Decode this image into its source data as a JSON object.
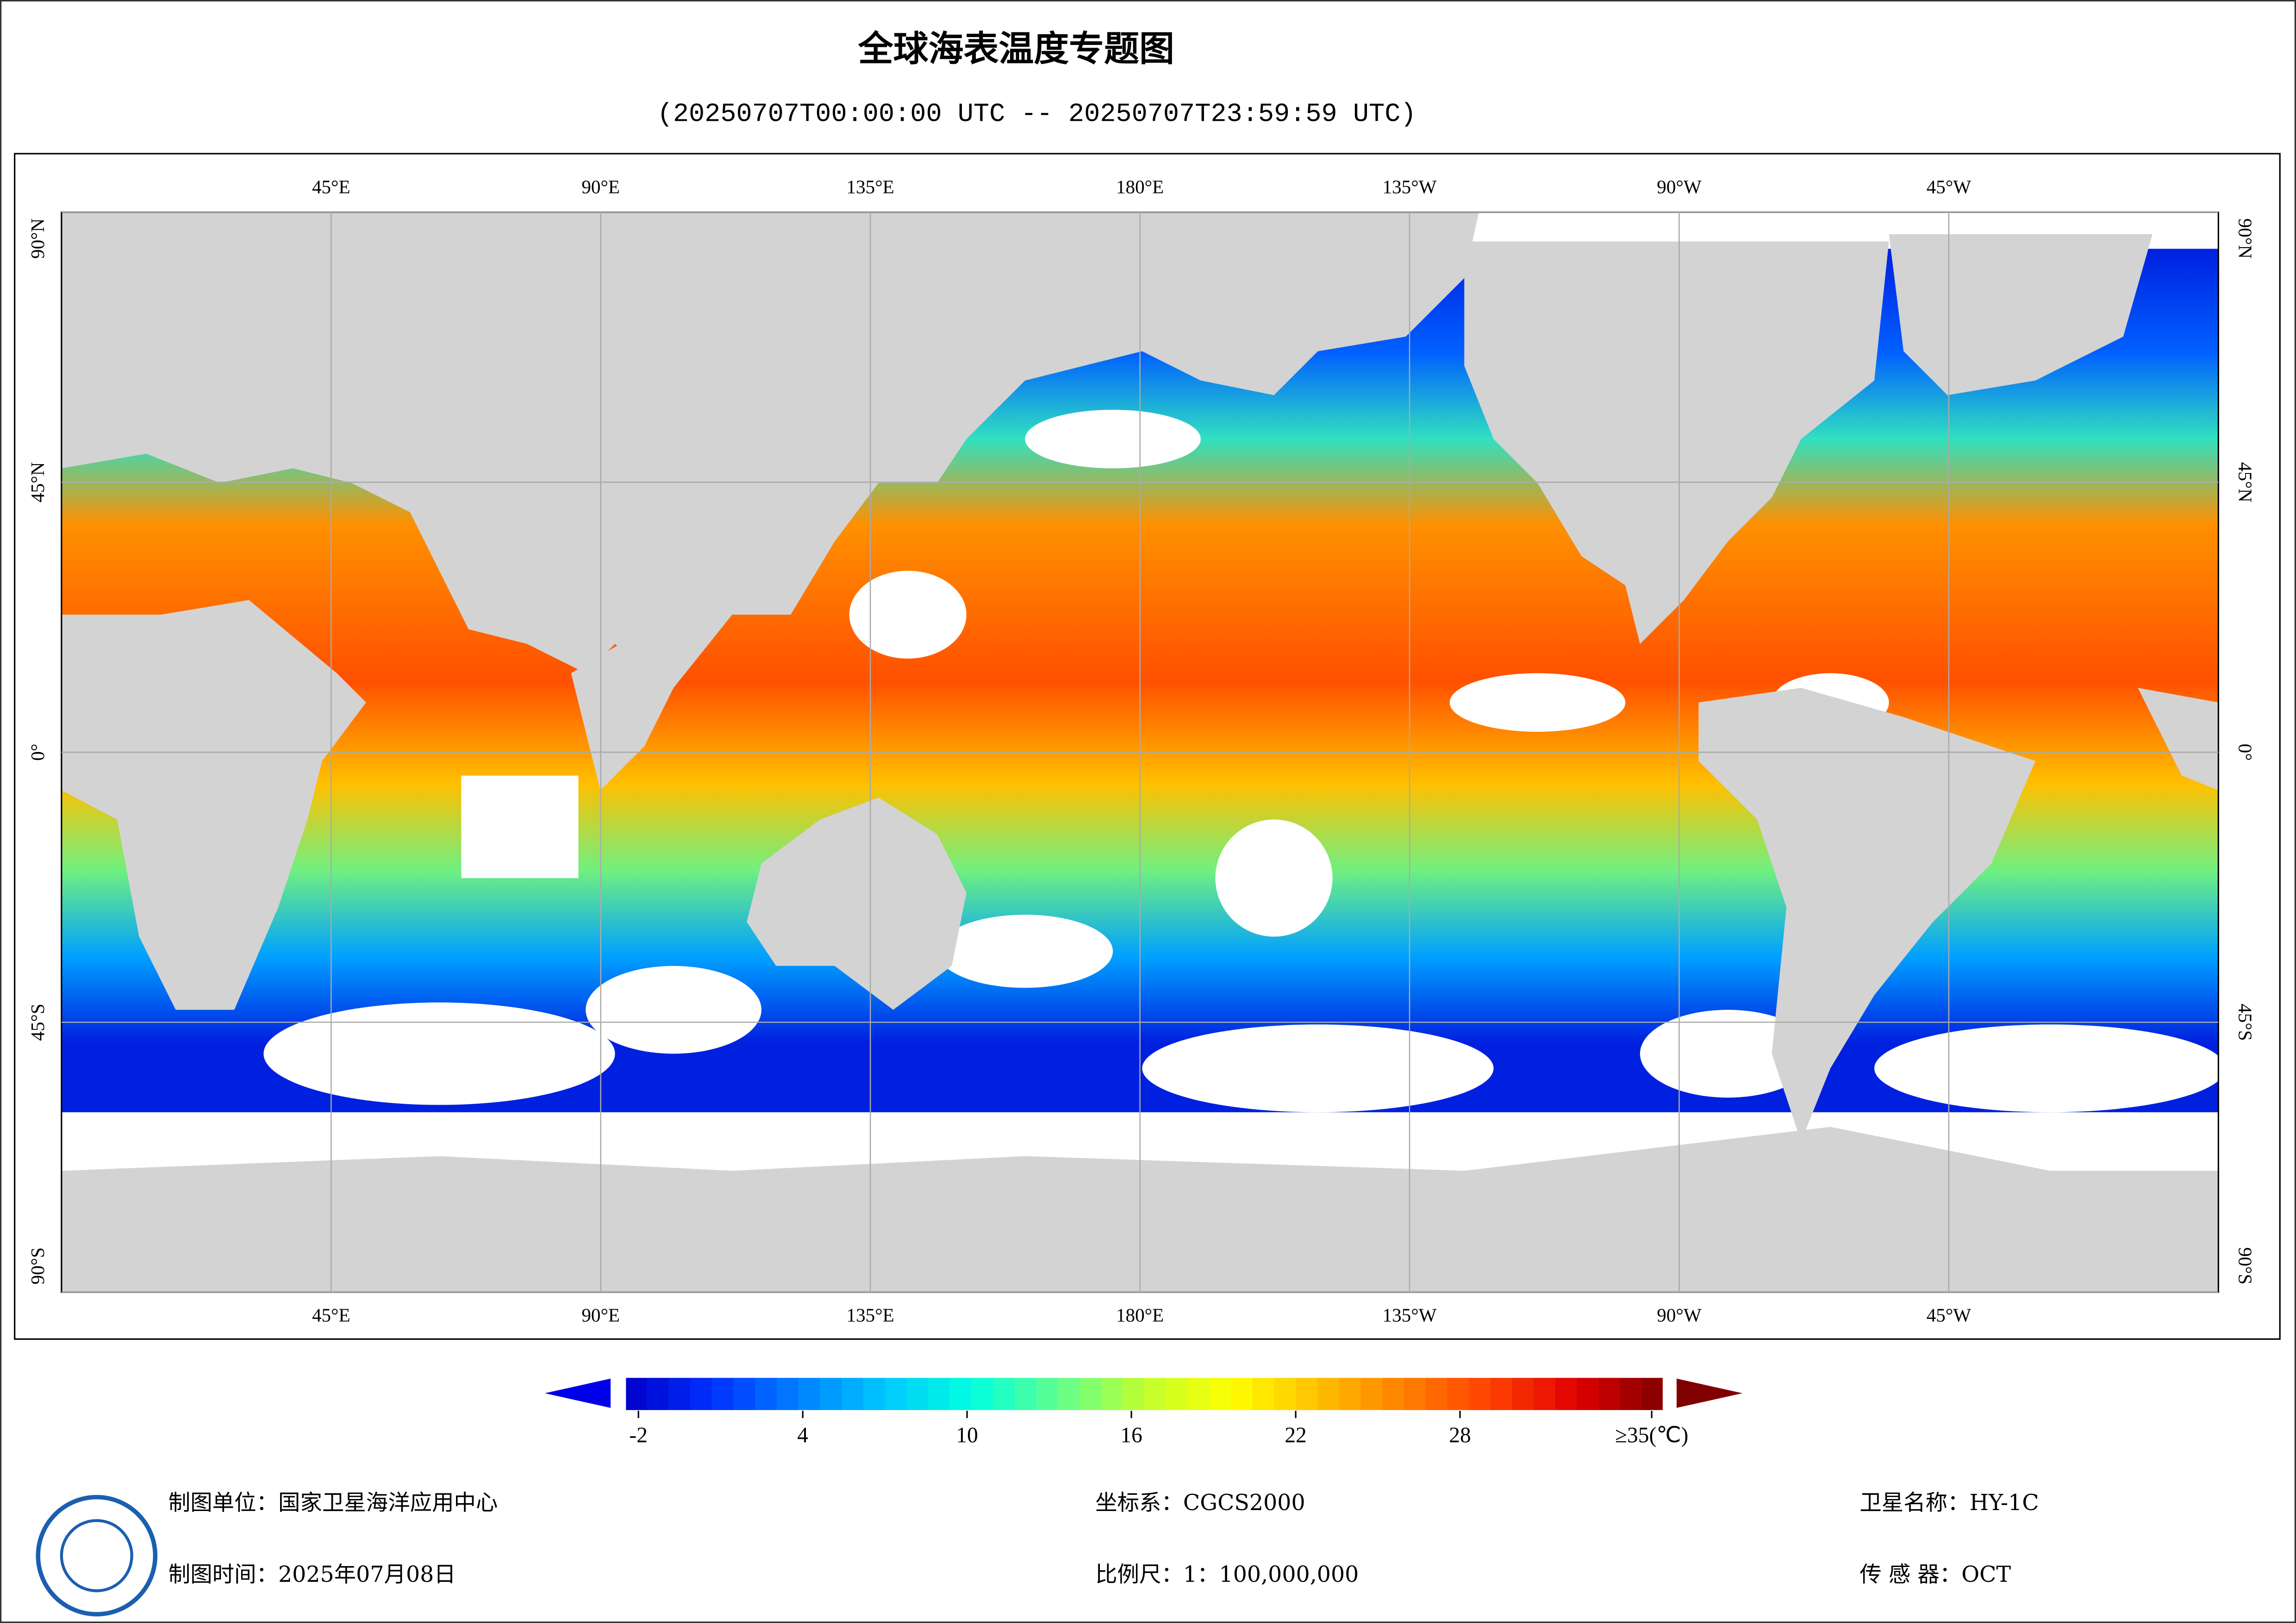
{
  "header": {
    "title": "全球海表温度专题图",
    "subtitle": "(20250707T00:00:00 UTC -- 20250707T23:59:59 UTC)"
  },
  "map": {
    "xlim": [
      0,
      360
    ],
    "ylim": [
      -90,
      90
    ],
    "xticks": [
      {
        "value": 45,
        "label": "45°E"
      },
      {
        "value": 90,
        "label": "90°E"
      },
      {
        "value": 135,
        "label": "135°E"
      },
      {
        "value": 180,
        "label": "180°E"
      },
      {
        "value": -135,
        "label": "135°W"
      },
      {
        "value": -90,
        "label": "90°W"
      },
      {
        "value": -45,
        "label": "45°W"
      }
    ],
    "yticks": [
      {
        "value": 90,
        "label": "90°N"
      },
      {
        "value": 45,
        "label": "45°N"
      },
      {
        "value": 0,
        "label": "0°"
      },
      {
        "value": -45,
        "label": "45°S"
      },
      {
        "value": -90,
        "label": "90°S"
      }
    ],
    "grid": true
  },
  "colorbar": {
    "clim": [
      -2,
      35
    ],
    "ticks": [
      -2,
      4,
      10,
      16,
      22,
      28,
      {
        "value": 35,
        "label": "≥35(℃)"
      }
    ],
    "colors": [
      "#0000c8",
      "#0030ff",
      "#0080ff",
      "#00c8ff",
      "#00ffe0",
      "#60ff90",
      "#c0ff30",
      "#ffff00",
      "#ffc000",
      "#ff8000",
      "#ff4000",
      "#e00000",
      "#800000"
    ]
  },
  "footer": {
    "producer": "制图单位：国家卫星海洋应用中心",
    "date": "制图时间：2025年07月08日",
    "crs": "坐标系：CGCS2000",
    "scale": "比例尺：1：100,000,000",
    "satellite": "卫星名称：HY-1C",
    "sensor": "传 感 器：OCT"
  }
}
